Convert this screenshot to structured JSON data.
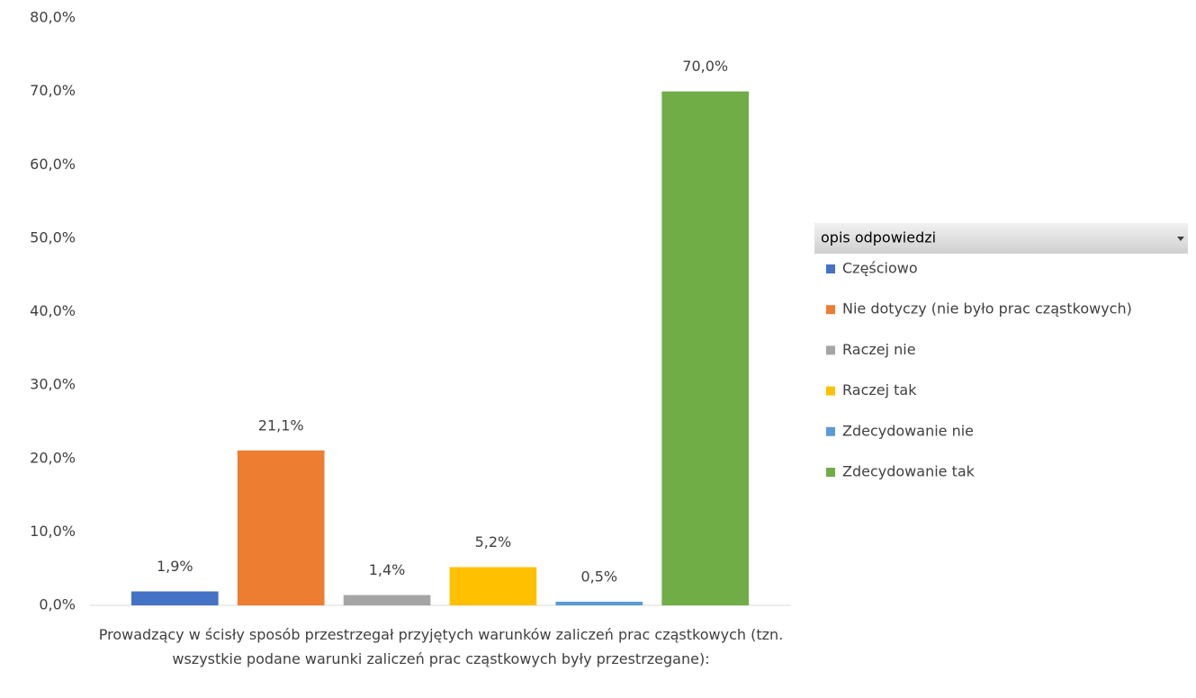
{
  "chart_data": {
    "type": "bar",
    "categories": [
      "Prowadzący w ścisły sposób przestrzegał przyjętych warunków zaliczeń prac cząstkowych (tzn. wszystkie podane warunki zaliczeń prac cząstkowych były przestrzegane):"
    ],
    "series": [
      {
        "name": "Częściowo",
        "color": "#4472c4",
        "values": [
          1.9
        ],
        "value_labels": [
          "1,9%"
        ]
      },
      {
        "name": "Nie dotyczy (nie było prac cząstkowych)",
        "color": "#ed7d31",
        "values": [
          21.1
        ],
        "value_labels": [
          "21,1%"
        ]
      },
      {
        "name": "Raczej nie",
        "color": "#a5a5a5",
        "values": [
          1.4
        ],
        "value_labels": [
          "1,4%"
        ]
      },
      {
        "name": "Raczej tak",
        "color": "#ffc000",
        "values": [
          5.2
        ],
        "value_labels": [
          "5,2%"
        ]
      },
      {
        "name": "Zdecydowanie nie",
        "color": "#5b9bd5",
        "values": [
          0.5
        ],
        "value_labels": [
          "0,5%"
        ]
      },
      {
        "name": "Zdecydowanie tak",
        "color": "#70ad47",
        "values": [
          70.0
        ],
        "value_labels": [
          "70,0%"
        ]
      }
    ],
    "legend_title": "opis odpowiedzi",
    "legend": "right",
    "grid": false,
    "ylim": [
      0,
      80
    ],
    "yticks": [
      {
        "value": 0,
        "label": "0,0%"
      },
      {
        "value": 10,
        "label": "10,0%"
      },
      {
        "value": 20,
        "label": "20,0%"
      },
      {
        "value": 30,
        "label": "30,0%"
      },
      {
        "value": 40,
        "label": "40,0%"
      },
      {
        "value": 50,
        "label": "50,0%"
      },
      {
        "value": 60,
        "label": "60,0%"
      },
      {
        "value": 70,
        "label": "70,0%"
      },
      {
        "value": 80,
        "label": "80,0%"
      }
    ]
  }
}
